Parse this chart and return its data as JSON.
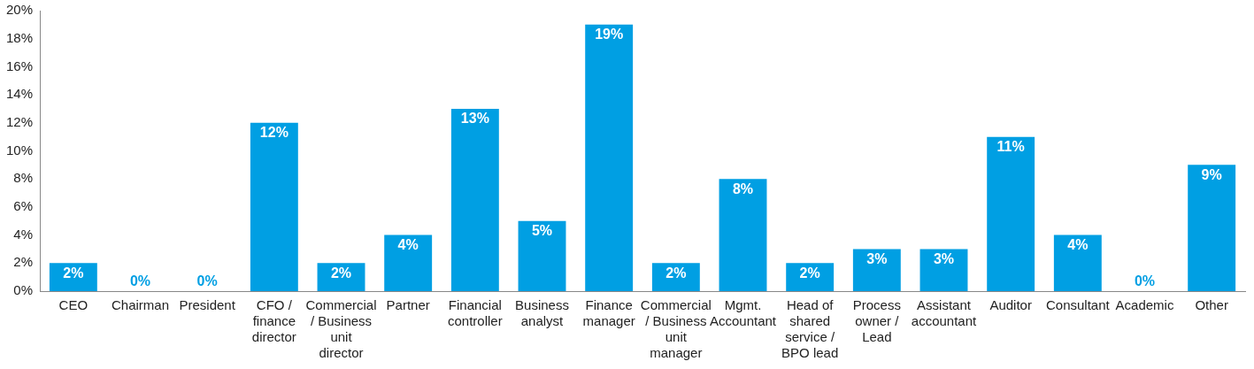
{
  "chart_data": {
    "type": "bar",
    "categories": [
      "CEO",
      "Chairman",
      "President",
      "CFO / finance director",
      "Commercial / Business unit director",
      "Partner",
      "Financial controller",
      "Business analyst",
      "Finance manager",
      "Commercial / Business unit manager",
      "Mgmt. Accountant",
      "Head of shared service / BPO lead",
      "Process owner / Lead",
      "Assistant accountant",
      "Auditor",
      "Consultant",
      "Academic",
      "Other"
    ],
    "values": [
      2,
      0,
      0,
      12,
      2,
      4,
      13,
      5,
      19,
      2,
      8,
      2,
      3,
      3,
      11,
      4,
      0,
      9
    ],
    "value_labels": [
      "2%",
      "0%",
      "0%",
      "12%",
      "2%",
      "4%",
      "13%",
      "5%",
      "19%",
      "2%",
      "8%",
      "2%",
      "3%",
      "3%",
      "11%",
      "4%",
      "0%",
      "9%"
    ],
    "color": "#009fe3",
    "ylim": [
      0,
      20
    ],
    "yticks": [
      {
        "value": 0,
        "label": "0%"
      },
      {
        "value": 2,
        "label": "2%"
      },
      {
        "value": 4,
        "label": "4%"
      },
      {
        "value": 6,
        "label": "6%"
      },
      {
        "value": 8,
        "label": "8%"
      },
      {
        "value": 10,
        "label": "10%"
      },
      {
        "value": 12,
        "label": "12%"
      },
      {
        "value": 14,
        "label": "14%"
      },
      {
        "value": 16,
        "label": "16%"
      },
      {
        "value": 18,
        "label": "18%"
      },
      {
        "value": 20,
        "label": "20%"
      }
    ]
  }
}
